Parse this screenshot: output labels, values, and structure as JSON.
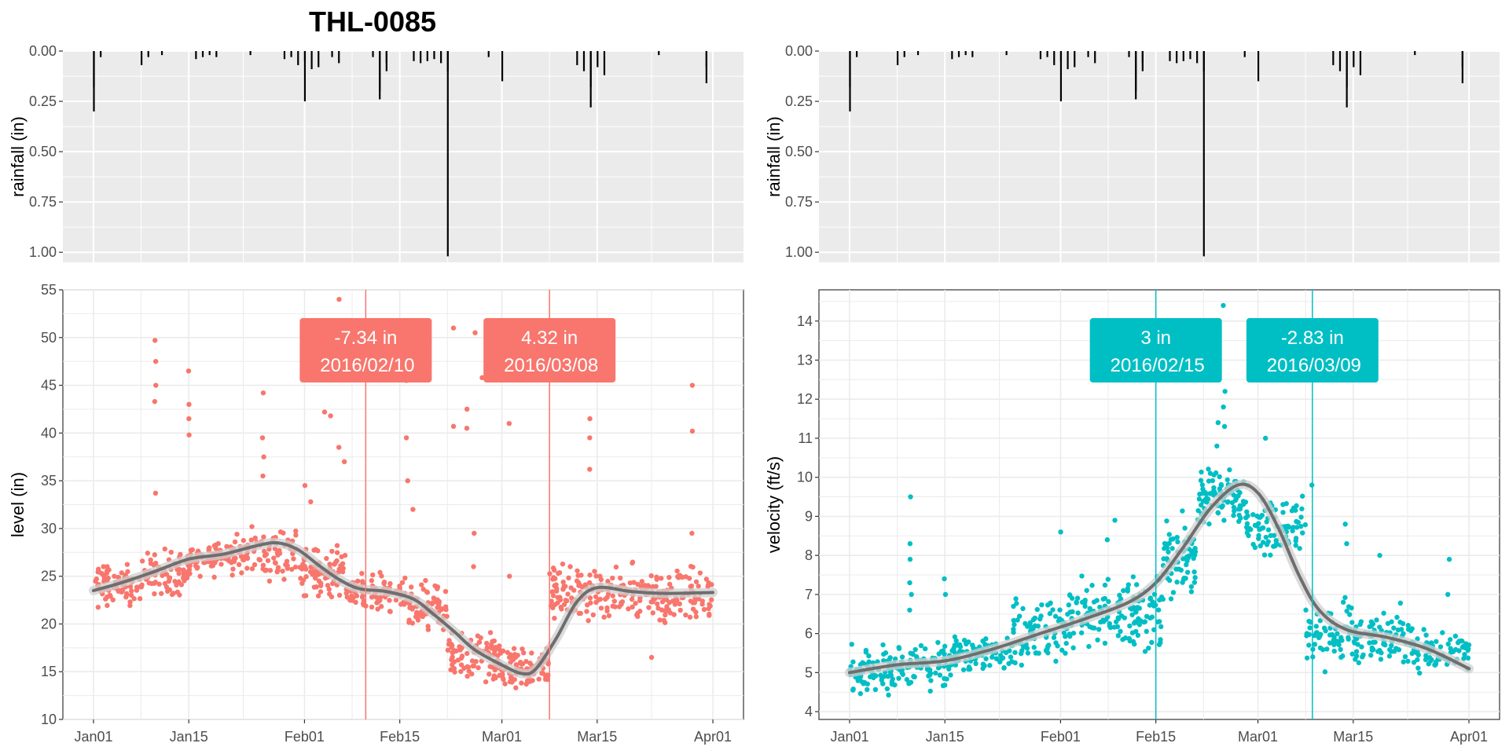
{
  "page_title": "THL-0085",
  "colors": {
    "level": "#F8766D",
    "velocity": "#00BFC4",
    "smooth": "#6e6e6e",
    "smooth_band": "#cfcfcf",
    "rain": "#000000",
    "panel_bg": "#EBEBEB",
    "grid": "#FFFFFF",
    "lower_panel_grid": "#EBEBEB"
  },
  "chart_data": [
    {
      "id": "rain_left",
      "type": "bar",
      "ylabel": "rainfall (in)",
      "y_reversed": true,
      "ylim": [
        0,
        1.05
      ],
      "yticks": [
        "0.00",
        "0.25",
        "0.50",
        "0.75",
        "1.00"
      ],
      "xlim": [
        "2016-01-01",
        "2016-04-01"
      ],
      "grid": true,
      "events": [
        [
          "2016-01-01",
          0.3
        ],
        [
          "2016-01-01",
          0.18
        ],
        [
          "2016-01-02",
          0.03
        ],
        [
          "2016-01-08",
          0.07
        ],
        [
          "2016-01-09",
          0.03
        ],
        [
          "2016-01-11",
          0.02
        ],
        [
          "2016-01-16",
          0.04
        ],
        [
          "2016-01-17",
          0.03
        ],
        [
          "2016-01-18",
          0.02
        ],
        [
          "2016-01-19",
          0.03
        ],
        [
          "2016-01-24",
          0.02
        ],
        [
          "2016-01-29",
          0.04
        ],
        [
          "2016-01-30",
          0.03
        ],
        [
          "2016-01-31",
          0.07
        ],
        [
          "2016-02-01",
          0.25
        ],
        [
          "2016-02-01",
          0.05
        ],
        [
          "2016-02-02",
          0.09
        ],
        [
          "2016-02-03",
          0.08
        ],
        [
          "2016-02-05",
          0.03
        ],
        [
          "2016-02-06",
          0.06
        ],
        [
          "2016-02-11",
          0.03
        ],
        [
          "2016-02-12",
          0.2
        ],
        [
          "2016-02-12",
          0.24
        ],
        [
          "2016-02-13",
          0.1
        ],
        [
          "2016-02-13",
          0.06
        ],
        [
          "2016-02-17",
          0.05
        ],
        [
          "2016-02-18",
          0.06
        ],
        [
          "2016-02-19",
          0.05
        ],
        [
          "2016-02-20",
          0.04
        ],
        [
          "2016-02-21",
          0.06
        ],
        [
          "2016-02-22",
          1.02
        ],
        [
          "2016-02-22",
          0.1
        ],
        [
          "2016-02-28",
          0.03
        ],
        [
          "2016-03-01",
          0.15
        ],
        [
          "2016-03-12",
          0.07
        ],
        [
          "2016-03-13",
          0.1
        ],
        [
          "2016-03-14",
          0.28
        ],
        [
          "2016-03-14",
          0.18
        ],
        [
          "2016-03-15",
          0.08
        ],
        [
          "2016-03-16",
          0.12
        ],
        [
          "2016-03-24",
          0.02
        ],
        [
          "2016-03-31",
          0.16
        ],
        [
          "2016-03-31",
          0.08
        ]
      ]
    },
    {
      "id": "rain_right",
      "type": "bar",
      "ylabel": "rainfall (in)",
      "y_reversed": true,
      "ylim": [
        0,
        1.05
      ],
      "yticks": [
        "0.00",
        "0.25",
        "0.50",
        "0.75",
        "1.00"
      ],
      "xlim": [
        "2016-01-01",
        "2016-04-01"
      ],
      "grid": true,
      "same_as": "rain_left"
    },
    {
      "id": "level",
      "type": "scatter",
      "ylabel": "level (in)",
      "ylim": [
        10,
        55
      ],
      "yticks": [
        "10",
        "15",
        "20",
        "25",
        "30",
        "35",
        "40",
        "45",
        "50",
        "55"
      ],
      "xlim": [
        "2016-01-01",
        "2016-04-01"
      ],
      "xticks": [
        "Jan01",
        "Jan15",
        "Feb01",
        "Feb15",
        "Mar01",
        "Mar15",
        "Apr01"
      ],
      "grid": true,
      "smooth_curve": [
        [
          "2016-01-01",
          23.5
        ],
        [
          "2016-01-05",
          24.3
        ],
        [
          "2016-01-10",
          25.5
        ],
        [
          "2016-01-15",
          26.8
        ],
        [
          "2016-01-20",
          27.3
        ],
        [
          "2016-01-25",
          28.2
        ],
        [
          "2016-01-28",
          28.5
        ],
        [
          "2016-01-31",
          27.8
        ],
        [
          "2016-02-03",
          26.2
        ],
        [
          "2016-02-06",
          24.7
        ],
        [
          "2016-02-09",
          23.7
        ],
        [
          "2016-02-13",
          23.4
        ],
        [
          "2016-02-17",
          22.6
        ],
        [
          "2016-02-20",
          21.0
        ],
        [
          "2016-02-23",
          19.2
        ],
        [
          "2016-02-26",
          17.3
        ],
        [
          "2016-03-01",
          15.7
        ],
        [
          "2016-03-04",
          14.8
        ],
        [
          "2016-03-06",
          15.3
        ],
        [
          "2016-03-09",
          18.5
        ],
        [
          "2016-03-12",
          22.3
        ],
        [
          "2016-03-15",
          23.8
        ],
        [
          "2016-03-20",
          23.4
        ],
        [
          "2016-03-25",
          23.2
        ],
        [
          "2016-04-01",
          23.3
        ]
      ],
      "points_clusters": [
        {
          "x": [
            "2016-01-01",
            "2016-01-08"
          ],
          "y": [
            21.0,
            27.0
          ],
          "n": 80
        },
        {
          "x": [
            "2016-01-08",
            "2016-01-15"
          ],
          "y": [
            22.0,
            28.5
          ],
          "n": 80
        },
        {
          "x": [
            "2016-01-15",
            "2016-01-22"
          ],
          "y": [
            24.5,
            29.5
          ],
          "n": 80
        },
        {
          "x": [
            "2016-01-22",
            "2016-01-31"
          ],
          "y": [
            24.0,
            31.0
          ],
          "n": 90
        },
        {
          "x": [
            "2016-01-31",
            "2016-02-07"
          ],
          "y": [
            22.0,
            29.0
          ],
          "n": 80
        },
        {
          "x": [
            "2016-02-07",
            "2016-02-16"
          ],
          "y": [
            20.5,
            26.0
          ],
          "n": 90
        },
        {
          "x": [
            "2016-02-16",
            "2016-02-22"
          ],
          "y": [
            18.5,
            25.0
          ],
          "n": 70
        },
        {
          "x": [
            "2016-02-22",
            "2016-03-01"
          ],
          "y": [
            12.5,
            20.0
          ],
          "n": 90
        },
        {
          "x": [
            "2016-03-01",
            "2016-03-08"
          ],
          "y": [
            12.0,
            18.5
          ],
          "n": 90
        },
        {
          "x": [
            "2016-03-08",
            "2016-03-16"
          ],
          "y": [
            19.0,
            27.5
          ],
          "n": 90
        },
        {
          "x": [
            "2016-03-16",
            "2016-03-24"
          ],
          "y": [
            19.0,
            27.0
          ],
          "n": 80
        },
        {
          "x": [
            "2016-03-24",
            "2016-04-01"
          ],
          "y": [
            19.0,
            27.0
          ],
          "n": 80
        }
      ],
      "points_outliers": [
        [
          "2016-01-10",
          49.7
        ],
        [
          "2016-01-10",
          47.5
        ],
        [
          "2016-01-10",
          45.0
        ],
        [
          "2016-01-10",
          43.3
        ],
        [
          "2016-01-10",
          33.7
        ],
        [
          "2016-01-15",
          46.5
        ],
        [
          "2016-01-15",
          43.0
        ],
        [
          "2016-01-15",
          41.5
        ],
        [
          "2016-01-15",
          39.8
        ],
        [
          "2016-01-26",
          44.2
        ],
        [
          "2016-01-26",
          39.5
        ],
        [
          "2016-01-26",
          37.5
        ],
        [
          "2016-01-26",
          35.5
        ],
        [
          "2016-02-01",
          34.5
        ],
        [
          "2016-02-02",
          32.8
        ],
        [
          "2016-02-04",
          42.2
        ],
        [
          "2016-02-05",
          41.8
        ],
        [
          "2016-02-06",
          38.5
        ],
        [
          "2016-02-07",
          37.0
        ],
        [
          "2016-02-06",
          54.0
        ],
        [
          "2016-02-16",
          45.5
        ],
        [
          "2016-02-16",
          39.5
        ],
        [
          "2016-02-16",
          35.0
        ],
        [
          "2016-02-17",
          32.0
        ],
        [
          "2016-02-23",
          51.0
        ],
        [
          "2016-02-26",
          50.5
        ],
        [
          "2016-02-25",
          42.5
        ],
        [
          "2016-02-25",
          40.5
        ],
        [
          "2016-02-23",
          40.7
        ],
        [
          "2016-02-27",
          45.8
        ],
        [
          "2016-02-26",
          29.5
        ],
        [
          "2016-02-26",
          26.0
        ],
        [
          "2016-03-02",
          41.0
        ],
        [
          "2016-03-02",
          25.0
        ],
        [
          "2016-03-13",
          45.8
        ],
        [
          "2016-03-14",
          41.5
        ],
        [
          "2016-03-14",
          39.5
        ],
        [
          "2016-03-14",
          36.2
        ],
        [
          "2016-03-29",
          45.0
        ],
        [
          "2016-03-29",
          40.2
        ],
        [
          "2016-03-29",
          29.5
        ],
        [
          "2016-03-23",
          16.5
        ]
      ],
      "vlines": [
        "2016-02-10",
        "2016-03-08"
      ],
      "labels": [
        {
          "x": "2016-02-10",
          "value": "-7.34 in",
          "date": "2016/02/10"
        },
        {
          "x": "2016-03-08",
          "value": "4.32 in",
          "date": "2016/03/08"
        }
      ]
    },
    {
      "id": "velocity",
      "type": "scatter",
      "ylabel": "velocity (ft/s)",
      "ylim": [
        3.8,
        14.8
      ],
      "yticks": [
        "4",
        "5",
        "6",
        "7",
        "8",
        "9",
        "10",
        "11",
        "12",
        "13",
        "14"
      ],
      "xlim": [
        "2016-01-01",
        "2016-04-01"
      ],
      "xticks": [
        "Jan01",
        "Jan15",
        "Feb01",
        "Feb15",
        "Mar01",
        "Mar15",
        "Apr01"
      ],
      "grid": true,
      "smooth_curve": [
        [
          "2016-01-01",
          5.0
        ],
        [
          "2016-01-08",
          5.2
        ],
        [
          "2016-01-15",
          5.3
        ],
        [
          "2016-01-22",
          5.6
        ],
        [
          "2016-01-29",
          6.0
        ],
        [
          "2016-02-05",
          6.4
        ],
        [
          "2016-02-11",
          6.8
        ],
        [
          "2016-02-15",
          7.3
        ],
        [
          "2016-02-19",
          8.2
        ],
        [
          "2016-02-23",
          9.2
        ],
        [
          "2016-02-27",
          9.8
        ],
        [
          "2016-03-01",
          9.6
        ],
        [
          "2016-03-04",
          8.7
        ],
        [
          "2016-03-07",
          7.5
        ],
        [
          "2016-03-10",
          6.6
        ],
        [
          "2016-03-14",
          6.1
        ],
        [
          "2016-03-20",
          5.9
        ],
        [
          "2016-03-26",
          5.6
        ],
        [
          "2016-04-01",
          5.1
        ]
      ],
      "points_clusters": [
        {
          "x": [
            "2016-01-01",
            "2016-01-08"
          ],
          "y": [
            4.3,
            5.8
          ],
          "n": 80
        },
        {
          "x": [
            "2016-01-08",
            "2016-01-16"
          ],
          "y": [
            4.4,
            6.0
          ],
          "n": 80
        },
        {
          "x": [
            "2016-01-16",
            "2016-01-25"
          ],
          "y": [
            4.8,
            6.1
          ],
          "n": 80
        },
        {
          "x": [
            "2016-01-25",
            "2016-02-02"
          ],
          "y": [
            4.9,
            7.2
          ],
          "n": 80
        },
        {
          "x": [
            "2016-02-02",
            "2016-02-10"
          ],
          "y": [
            5.3,
            7.8
          ],
          "n": 80
        },
        {
          "x": [
            "2016-02-10",
            "2016-02-16"
          ],
          "y": [
            5.2,
            7.7
          ],
          "n": 70
        },
        {
          "x": [
            "2016-02-16",
            "2016-02-21"
          ],
          "y": [
            6.5,
            9.4
          ],
          "n": 70
        },
        {
          "x": [
            "2016-02-21",
            "2016-02-28"
          ],
          "y": [
            8.5,
            10.5
          ],
          "n": 90
        },
        {
          "x": [
            "2016-02-28",
            "2016-03-08"
          ],
          "y": [
            7.8,
            9.9
          ],
          "n": 90
        },
        {
          "x": [
            "2016-03-08",
            "2016-03-16"
          ],
          "y": [
            4.8,
            7.2
          ],
          "n": 80
        },
        {
          "x": [
            "2016-03-16",
            "2016-03-24"
          ],
          "y": [
            4.7,
            6.9
          ],
          "n": 80
        },
        {
          "x": [
            "2016-03-24",
            "2016-04-01"
          ],
          "y": [
            4.8,
            6.2
          ],
          "n": 70
        }
      ],
      "points_outliers": [
        [
          "2016-01-10",
          9.5
        ],
        [
          "2016-01-10",
          8.3
        ],
        [
          "2016-01-10",
          7.9
        ],
        [
          "2016-01-10",
          7.3
        ],
        [
          "2016-01-10",
          7.0
        ],
        [
          "2016-01-10",
          6.6
        ],
        [
          "2016-01-15",
          7.4
        ],
        [
          "2016-01-15",
          7.0
        ],
        [
          "2016-02-01",
          8.6
        ],
        [
          "2016-02-09",
          8.9
        ],
        [
          "2016-02-08",
          8.4
        ],
        [
          "2016-02-24",
          11.4
        ],
        [
          "2016-02-25",
          11.3
        ],
        [
          "2016-02-25",
          12.2
        ],
        [
          "2016-02-25",
          14.4
        ],
        [
          "2016-02-25",
          11.8
        ],
        [
          "2016-02-24",
          10.8
        ],
        [
          "2016-03-02",
          11.0
        ],
        [
          "2016-03-09",
          9.8
        ],
        [
          "2016-03-14",
          8.8
        ],
        [
          "2016-03-14",
          8.3
        ],
        [
          "2016-03-19",
          8.0
        ],
        [
          "2016-03-29",
          7.9
        ],
        [
          "2016-03-29",
          7.0
        ],
        [
          "2016-01-17",
          5.7
        ],
        [
          "2016-01-22",
          5.5
        ]
      ],
      "vlines": [
        "2016-02-15",
        "2016-03-09"
      ],
      "labels": [
        {
          "x": "2016-02-15",
          "value": "3 in",
          "date": "2016/02/15"
        },
        {
          "x": "2016-03-09",
          "value": "-2.83 in",
          "date": "2016/03/09"
        }
      ]
    }
  ]
}
